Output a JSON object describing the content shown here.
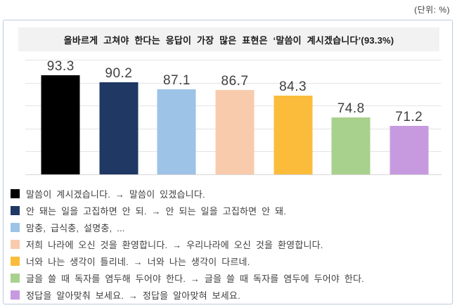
{
  "unit_label": "(단위: %)",
  "chart_data": {
    "type": "bar",
    "title": "올바르게 고쳐야 한다는 응답이 가장 많은 표현은 ‘말씀이 계시겠습니다’(93.3%)",
    "unit": "(단위: %)",
    "categories": [
      "말씀이 계시겠습니다. → 말씀이 있겠습니다.",
      "안 돼는 일을 고집하면 안 되. → 안 되는 일을 고집하면 안 돼.",
      "맘충, 급식충, 설명충, ...",
      "저희 나라에 오신 것을 환영합니다. → 우리나라에 오신 것을 환영합니다.",
      "너와 나는 생각이 틀리네. → 너와 나는 생각이 다르네.",
      "글을 쓸 때 독자를 염두해 두어야 한다. → 글을 쓸 때 독자를 염두에 두어야 한다.",
      "정답을 알아맞춰 보세요. → 정답을 알아맞혀 보세요."
    ],
    "values": [
      93.3,
      90.2,
      87.1,
      86.7,
      84.3,
      74.8,
      71.2
    ],
    "value_labels": [
      "93.3",
      "90.2",
      "87.1",
      "86.7",
      "84.3",
      "74.8",
      "71.2"
    ],
    "colors": [
      "#000000",
      "#1f3864",
      "#9dc3e6",
      "#f8cbad",
      "#fbbc3c",
      "#a9d18e",
      "#c79ae0"
    ],
    "ylim": [
      50,
      100
    ],
    "gridline_values": [
      100,
      90,
      80,
      70,
      60,
      50
    ],
    "grid": "horizontal",
    "legend_position": "bottom",
    "data_labels": "above-bars"
  }
}
